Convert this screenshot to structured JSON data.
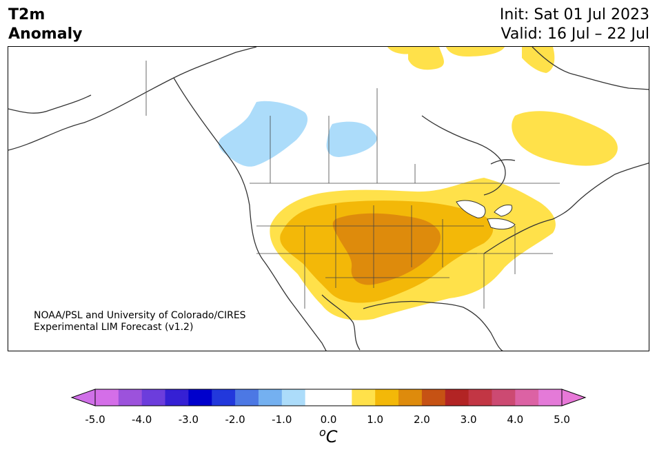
{
  "header": {
    "title_line1": "T2m",
    "title_line2": "Anomaly",
    "init": "Init: Sat 01 Jul 2023",
    "valid": "Valid: 16 Jul – 22 Jul"
  },
  "credit": {
    "line1": "NOAA/PSL and University of Colorado/CIRES",
    "line2": "Experimental LIM Forecast (v1.2)"
  },
  "colorbar": {
    "min": -5.0,
    "max": 5.0,
    "step": 0.5,
    "colors": [
      "#d46ee8",
      "#9c52dc",
      "#6c3ddc",
      "#3520d4",
      "#0000cc",
      "#2238dc",
      "#4c78e4",
      "#74b0f0",
      "#acdcfa",
      "#ffffff",
      "#ffffff",
      "#ffe14a",
      "#f3b808",
      "#de8b0c",
      "#c65214",
      "#b22424",
      "#c23644",
      "#cc4a72",
      "#dc62a4",
      "#e47ad8"
    ],
    "extend_low_color": "#d070e8",
    "extend_high_color": "#e878d8",
    "ticks": [
      "-5.0",
      "-4.0",
      "-3.0",
      "-2.0",
      "-1.0",
      "0.0",
      "1.0",
      "2.0",
      "3.0",
      "4.0",
      "5.0"
    ],
    "unit_sup": "o",
    "unit": "C"
  }
}
